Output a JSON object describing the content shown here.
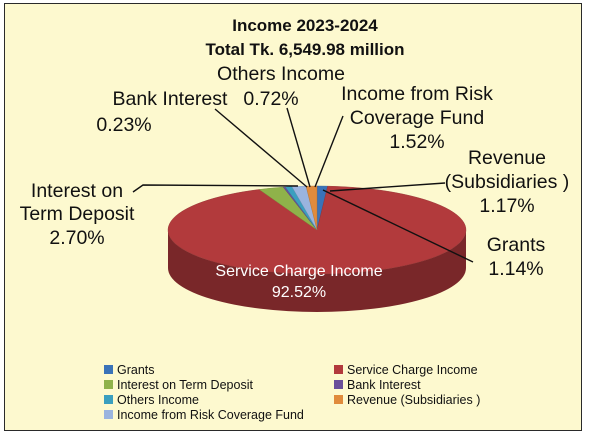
{
  "chart_data": {
    "type": "pie",
    "title": "Income 2023-2024",
    "subtitle": "Total Tk. 6,549.98 million",
    "legend_position": "bottom",
    "slices": [
      {
        "label": "Grants",
        "value": 1.14,
        "value_label": "1.14%",
        "color": "#3a73b8"
      },
      {
        "label": "Service Charge Income",
        "value": 92.52,
        "value_label": "92.52%",
        "color": "#b23a3c"
      },
      {
        "label": "Interest on Term Deposit",
        "value": 2.7,
        "value_label": "2.70%",
        "color": "#8fb24a"
      },
      {
        "label": "Bank Interest",
        "value": 0.23,
        "value_label": "0.23%",
        "color": "#6a4f9a"
      },
      {
        "label": "Others Income",
        "value": 0.72,
        "value_label": "0.72%",
        "color": "#3a9fbf"
      },
      {
        "label": "Income from Risk Coverage Fund",
        "value": 1.52,
        "value_label": "1.52%",
        "color": "#9ab4df"
      },
      {
        "label": "Revenue (Subsidiaries )",
        "value": 1.17,
        "value_label": "1.17%",
        "color": "#e08b3c"
      }
    ],
    "slice_labels": {
      "bank_interest": [
        "Bank Interest",
        "0.23%"
      ],
      "others_income": [
        "Others Income",
        "0.72%"
      ],
      "risk_fund": [
        "Income from Risk",
        "Coverage Fund",
        "1.52%"
      ],
      "revenue_subsidiaries": [
        "Revenue",
        "(Subsidiaries )",
        "1.17%"
      ],
      "interest_term_deposit": [
        "Interest on",
        "Term Deposit",
        "2.70%"
      ],
      "grants": [
        "Grants",
        "1.14%"
      ],
      "service_charge": [
        "Service Charge Income",
        "92.52%"
      ]
    }
  }
}
